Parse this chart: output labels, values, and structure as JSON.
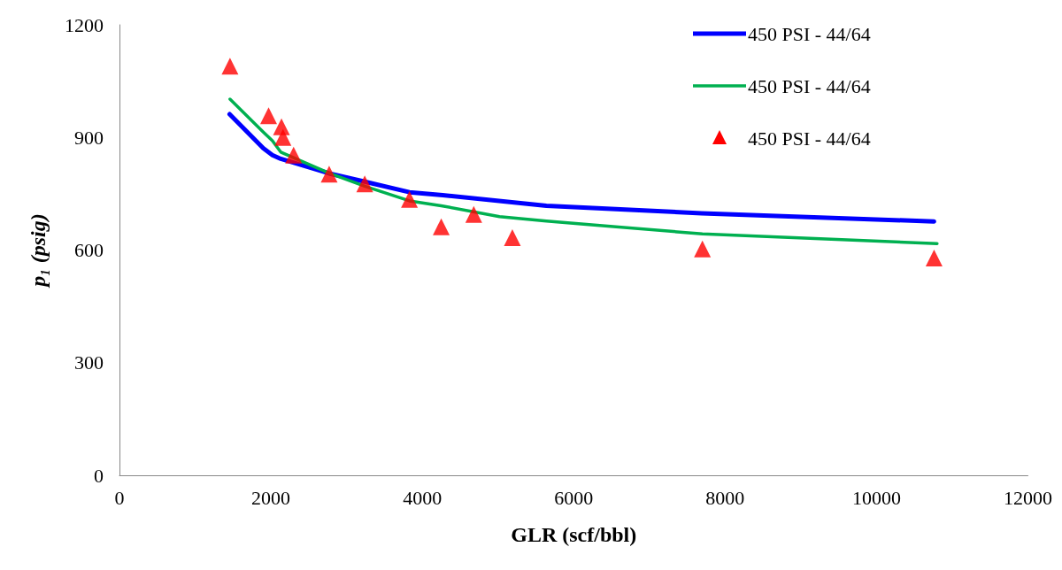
{
  "chart_data": {
    "type": "line",
    "xlabel": "GLR (scf/bbl)",
    "ylabel": "p₁ (psig)",
    "xlim": [
      0,
      12000
    ],
    "xticks": [
      0,
      2000,
      4000,
      6000,
      8000,
      10000,
      12000
    ],
    "ylim": [
      0,
      1200
    ],
    "yticks": [
      0,
      300,
      600,
      900,
      1200
    ],
    "grid": false,
    "legend": "top right",
    "marker": "none",
    "series": [
      {
        "name": "450 PSI - 44/64",
        "color": "#0000ff",
        "x": [
          1455,
          1900,
          2020,
          2130,
          2770,
          3240,
          3830,
          4270,
          5640,
          7690,
          10760
        ],
        "values": [
          962,
          871,
          853,
          843,
          804,
          782,
          754,
          746,
          718,
          698,
          676
        ]
      },
      {
        "name": "450 PSI - 44/64",
        "color": "#00b050",
        "x": [
          1460,
          1900,
          2020,
          2130,
          2770,
          3240,
          3830,
          4250,
          5020,
          5640,
          7700,
          10800
        ],
        "values": [
          1002,
          914,
          891,
          861,
          805,
          770,
          731,
          718,
          689,
          677,
          643,
          617
        ]
      },
      {
        "name": "450 PSI - 44/64",
        "type": "scatter",
        "marker": "triangle",
        "color": "#ff0000",
        "x": [
          1460,
          1970,
          2140,
          2160,
          2300,
          2770,
          3240,
          3830,
          4250,
          4680,
          5190,
          7700,
          10760
        ],
        "values": [
          1090,
          958,
          928,
          900,
          853,
          802,
          776,
          735,
          662,
          695,
          633,
          603,
          579
        ]
      }
    ]
  }
}
